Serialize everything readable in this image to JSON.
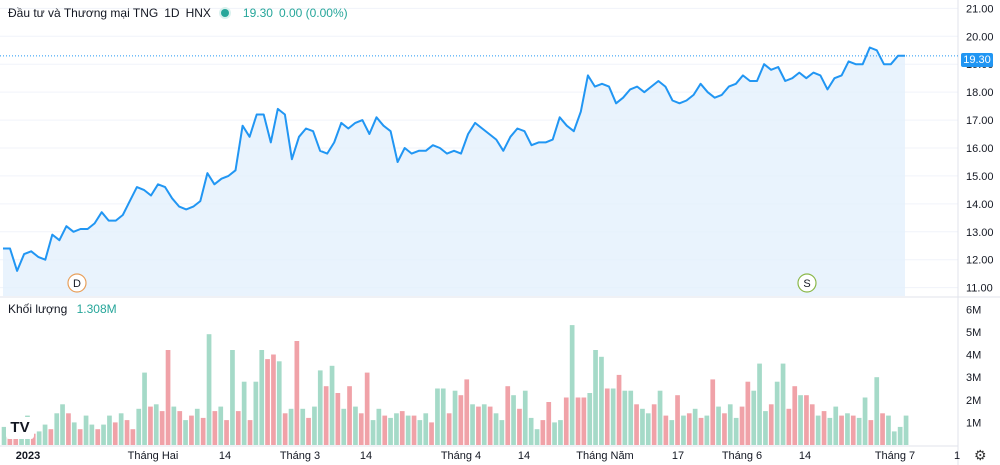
{
  "header": {
    "title": "Đầu tư và Thương mại TNG",
    "interval": "1D",
    "exchange": "HNX",
    "price": "19.30",
    "change": "0.00 (0.00%)"
  },
  "volume_legend": {
    "label": "Khối lượng",
    "value": "1.308M"
  },
  "last_price_tag": "19.30",
  "logo_text": "TV",
  "colors": {
    "line": "#2196f3",
    "area": "#e3f0fd",
    "vol_up": "#a5dac8",
    "vol_down": "#f0a2a8",
    "grid": "#f0f3fa"
  },
  "chart_data": [
    {
      "type": "area",
      "title": "",
      "ylabel": "",
      "ylim": [
        10.7,
        21.3
      ],
      "y_ticks": [
        "21.00",
        "20.00",
        "19.00",
        "18.00",
        "17.00",
        "16.00",
        "15.00",
        "14.00",
        "13.00",
        "12.00",
        "11.00"
      ],
      "x_ticks": [
        "2023",
        "Tháng Hai",
        "14",
        "Tháng 3",
        "14",
        "Tháng 4",
        "14",
        "Tháng Năm",
        "17",
        "Tháng 6",
        "14",
        "Tháng 7",
        "1"
      ],
      "markers": [
        "D",
        "S"
      ],
      "series": [
        {
          "values": [
            12.4,
            12.4,
            11.6,
            12.2,
            12.3,
            12.1,
            12.0,
            12.9,
            12.7,
            13.2,
            13.0,
            13.1,
            13.1,
            13.3,
            13.7,
            13.4,
            13.4,
            13.6,
            14.1,
            14.6,
            14.5,
            14.3,
            14.7,
            14.6,
            14.2,
            13.9,
            13.8,
            13.9,
            14.1,
            15.1,
            14.7,
            14.9,
            15.0,
            15.2,
            16.8,
            16.4,
            17.2,
            17.2,
            16.2,
            17.4,
            17.2,
            15.6,
            16.4,
            16.7,
            16.6,
            15.9,
            15.8,
            16.2,
            16.9,
            16.7,
            16.9,
            17.0,
            16.5,
            17.1,
            16.8,
            16.6,
            15.5,
            16.0,
            15.8,
            15.9,
            15.9,
            16.1,
            16.0,
            15.8,
            15.9,
            15.8,
            16.5,
            16.9,
            16.7,
            16.5,
            16.3,
            15.9,
            16.4,
            16.7,
            16.6,
            16.1,
            16.2,
            16.2,
            16.3,
            17.1,
            16.8,
            16.6,
            17.3,
            18.6,
            18.2,
            18.3,
            18.2,
            17.6,
            17.8,
            18.1,
            18.2,
            18.0,
            18.2,
            18.4,
            18.2,
            17.7,
            17.6,
            17.7,
            17.9,
            18.3,
            18.0,
            17.8,
            17.9,
            18.2,
            18.3,
            18.6,
            18.4,
            18.4,
            19.0,
            18.8,
            18.9,
            18.4,
            18.5,
            18.7,
            18.5,
            18.7,
            18.6,
            18.1,
            18.5,
            18.6,
            19.1,
            19.0,
            19.0,
            19.6,
            19.5,
            19.0,
            19.0,
            19.3,
            19.3
          ]
        }
      ]
    },
    {
      "type": "bar",
      "title": "",
      "ylim": [
        0,
        6.5
      ],
      "y_ticks": [
        "6M",
        "5M",
        "4M",
        "3M",
        "2M",
        "1M"
      ],
      "values": [
        0.8,
        0.5,
        0.5,
        1.0,
        1.3,
        0.5,
        0.6,
        0.9,
        0.7,
        1.4,
        1.8,
        1.4,
        1.0,
        0.7,
        1.3,
        0.9,
        0.7,
        0.9,
        1.3,
        1.0,
        1.4,
        1.1,
        0.7,
        1.6,
        3.2,
        1.7,
        1.8,
        1.5,
        4.2,
        1.7,
        1.5,
        1.1,
        1.3,
        1.6,
        1.2,
        4.9,
        1.5,
        1.7,
        1.1,
        4.2,
        1.5,
        2.8,
        1.1,
        2.8,
        4.2,
        3.8,
        4.0,
        3.7,
        1.4,
        1.6,
        4.6,
        1.6,
        1.2,
        1.7,
        3.3,
        2.6,
        3.5,
        2.3,
        1.6,
        2.6,
        1.7,
        1.4,
        3.2,
        1.1,
        1.6,
        1.3,
        1.2,
        1.4,
        1.5,
        1.3,
        1.3,
        1.1,
        1.4,
        1.0,
        2.5,
        2.5,
        1.4,
        2.4,
        2.2,
        2.9,
        1.8,
        1.7,
        1.8,
        1.7,
        1.4,
        1.1,
        2.6,
        2.2,
        1.6,
        2.4,
        1.2,
        0.7,
        1.1,
        1.9,
        1.0,
        1.1,
        2.1,
        5.3,
        2.1,
        2.1,
        2.3,
        4.2,
        3.9,
        2.5,
        2.5,
        3.1,
        2.4,
        2.4,
        1.8,
        1.6,
        1.4,
        1.8,
        2.4,
        1.3,
        1.1,
        2.2,
        1.3,
        1.4,
        1.6,
        1.2,
        1.3,
        2.9,
        1.7,
        1.4,
        1.8,
        1.2,
        1.7,
        2.8,
        2.4,
        3.6,
        1.5,
        1.8,
        2.8,
        3.6,
        1.6,
        2.6,
        2.2,
        2.2,
        1.8,
        1.3,
        1.5,
        1.2,
        1.7,
        1.3,
        1.4,
        1.3,
        1.2,
        2.1,
        1.1,
        3.0,
        1.4,
        1.3,
        0.6,
        0.8,
        1.3
      ],
      "directions": [
        "up",
        "down",
        "down",
        "up",
        "up",
        "down",
        "up",
        "up",
        "down",
        "up",
        "up",
        "down",
        "up",
        "down",
        "up",
        "up",
        "down",
        "up",
        "up",
        "down",
        "up",
        "down",
        "down",
        "up",
        "up",
        "down",
        "up",
        "down",
        "down",
        "up",
        "down",
        "up",
        "down",
        "up",
        "down",
        "up",
        "down",
        "up",
        "down",
        "up",
        "down",
        "up",
        "down",
        "up",
        "up",
        "down",
        "down",
        "up",
        "down",
        "up",
        "down",
        "up",
        "down",
        "up",
        "up",
        "down",
        "up",
        "down",
        "up",
        "down",
        "up",
        "down",
        "down",
        "up",
        "up",
        "down",
        "up",
        "up",
        "down",
        "up",
        "down",
        "up",
        "up",
        "down",
        "up",
        "up",
        "down",
        "up",
        "down",
        "down",
        "up",
        "down",
        "up",
        "down",
        "up",
        "up",
        "down",
        "up",
        "down",
        "up",
        "up",
        "up",
        "down",
        "down",
        "up",
        "up",
        "down",
        "up",
        "down",
        "down",
        "up",
        "up",
        "up",
        "down",
        "up",
        "down",
        "up",
        "up",
        "down",
        "up",
        "up",
        "down",
        "up",
        "down",
        "up",
        "down",
        "up",
        "down",
        "up",
        "down",
        "up",
        "down",
        "up",
        "down",
        "up",
        "up",
        "down",
        "down",
        "up",
        "up",
        "up",
        "down",
        "up",
        "up",
        "down",
        "down",
        "up",
        "down",
        "down",
        "up",
        "down",
        "up",
        "up",
        "down",
        "up",
        "down",
        "up",
        "up",
        "down",
        "up",
        "down",
        "up",
        "up",
        "up",
        "up"
      ]
    }
  ]
}
